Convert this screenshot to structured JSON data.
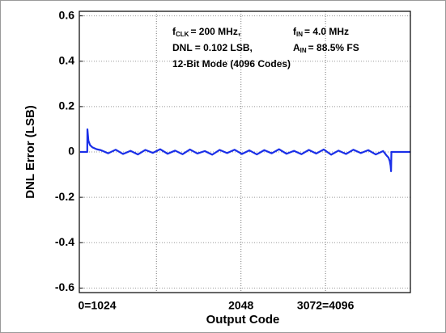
{
  "chart_data": {
    "type": "line",
    "xlabel": "Output Code",
    "ylabel": "DNL Error (LSB)",
    "annotations": [
      [
        "f",
        "CLK",
        "= 200 MHz,"
      ],
      [
        "f",
        "IN",
        "= 4.0 MHz"
      ],
      [
        "DNL = 0.102 LSB,"
      ],
      [
        "A",
        "IN",
        "= 88.5% FS"
      ],
      [
        "12-Bit Mode (4096 Codes)"
      ]
    ],
    "xlim": [
      90,
      4100
    ],
    "ylim": [
      -0.62,
      0.62
    ],
    "xticks": [
      {
        "value": 306,
        "label": "0=1024"
      },
      2048,
      {
        "value": 3072,
        "label": "3072=4096"
      }
    ],
    "xgrid": [
      1024,
      2048,
      3072
    ],
    "yticks": [
      0.6,
      0.4,
      0.2,
      0,
      -0.2,
      -0.4,
      -0.6
    ],
    "grid": true,
    "series": [
      {
        "color": "#1a2fe8",
        "x": [
          100,
          186,
          188,
          200,
          220,
          250,
          300,
          350,
          440,
          530,
          620,
          710,
          800,
          890,
          980,
          1070,
          1160,
          1250,
          1340,
          1430,
          1520,
          1610,
          1700,
          1790,
          1880,
          1970,
          2060,
          2150,
          2240,
          2330,
          2420,
          2510,
          2600,
          2690,
          2780,
          2870,
          2960,
          3050,
          3140,
          3230,
          3320,
          3410,
          3500,
          3590,
          3680,
          3770,
          3810,
          3835,
          3850,
          3860,
          3866,
          3870,
          4095
        ],
        "values": [
          0,
          0,
          0.1,
          0.05,
          0.03,
          0.02,
          0.012,
          0.008,
          -0.006,
          0.01,
          -0.009,
          0.005,
          -0.011,
          0.009,
          -0.004,
          0.012,
          -0.008,
          0.006,
          -0.01,
          0.011,
          -0.007,
          0.004,
          -0.012,
          0.009,
          -0.005,
          0.01,
          -0.009,
          0.007,
          -0.011,
          0.008,
          -0.006,
          0.012,
          -0.008,
          0.005,
          -0.01,
          0.009,
          -0.007,
          0.011,
          -0.012,
          0.006,
          -0.009,
          0.01,
          -0.005,
          0.008,
          -0.011,
          0.004,
          -0.015,
          -0.025,
          -0.04,
          -0.06,
          -0.085,
          0,
          0
        ]
      }
    ]
  }
}
